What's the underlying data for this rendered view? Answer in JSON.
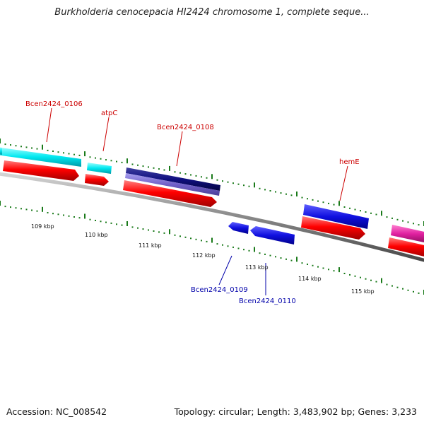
{
  "title": "Burkholderia cenocepacia HI2424 chromosome 1, complete seque...",
  "footer": {
    "accession": "Accession: NC_008542",
    "topology": "Topology: circular; Length: 3,483,902 bp; Genes: 3,233"
  },
  "scale_labels": [
    "109 kbp",
    "110 kbp",
    "111 kbp",
    "112 kbp",
    "113 kbp",
    "114 kbp",
    "115 kbp"
  ],
  "gene_labels": {
    "forward": [
      "Bcen2424_0106",
      "atpC",
      "Bcen2424_0108",
      "hemE"
    ],
    "reverse": [
      "Bcen2424_0109",
      "Bcen2424_0110"
    ]
  },
  "colors": {
    "forward_label": "#cc0000",
    "reverse_label": "#0000aa",
    "cds": "#ff0000",
    "cyan_feature": "#00e8f0",
    "navy_feature": "#101080",
    "lavender_feature": "#7060c8",
    "blue_feature": "#1010e0",
    "pink_feature": "#e020a0",
    "backbone": "#888888",
    "tick": "#1a7a1a"
  }
}
